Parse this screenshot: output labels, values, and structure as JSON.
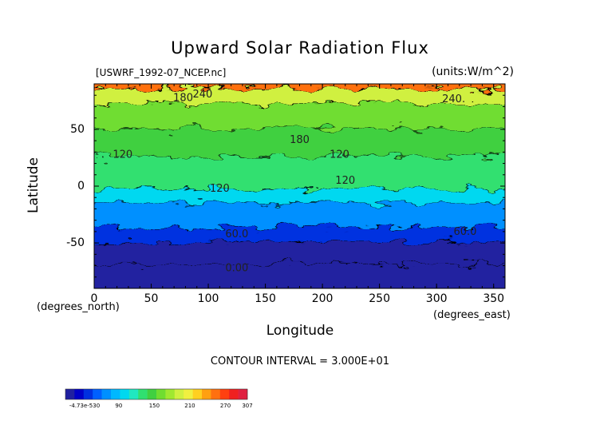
{
  "chart_data": {
    "type": "heatmap",
    "title": "Upward Solar Radiation Flux",
    "file_label": "[USWRF_1992-07_NCEP.nc]",
    "units_label": "(units:W/m^2)",
    "xlabel": "Longitude",
    "ylabel": "Latitude",
    "x_axis_note": "(degrees_east)",
    "y_axis_note": "(degrees_north)",
    "xlim": [
      0,
      360
    ],
    "ylim": [
      -90,
      90
    ],
    "x_ticks": [
      "0",
      "50",
      "100",
      "150",
      "200",
      "250",
      "300",
      "350"
    ],
    "y_ticks": [
      "50",
      "0",
      "-50"
    ],
    "contour_interval_text": "CONTOUR INTERVAL = 3.000E+01",
    "contour_labels": [
      {
        "text": "240",
        "lon": 95,
        "lat": 78
      },
      {
        "text": "180",
        "lon": 78,
        "lat": 75
      },
      {
        "text": "240.",
        "lon": 315,
        "lat": 74
      },
      {
        "text": "180",
        "lon": 180,
        "lat": 38
      },
      {
        "text": "120",
        "lon": 215,
        "lat": 25
      },
      {
        "text": "120",
        "lon": 25,
        "lat": 25
      },
      {
        "text": "120",
        "lon": 110,
        "lat": -5
      },
      {
        "text": "120",
        "lon": 220,
        "lat": 2
      },
      {
        "text": "60.0",
        "lon": 125,
        "lat": -45
      },
      {
        "text": "60.0",
        "lon": 325,
        "lat": -43
      },
      {
        "text": "0.00",
        "lon": 125,
        "lat": -75
      }
    ],
    "latitude_bands": [
      {
        "lat_from": 90,
        "lat_to": 80,
        "value": 255
      },
      {
        "lat_from": 80,
        "lat_to": 68,
        "value": 195
      },
      {
        "lat_from": 68,
        "lat_to": 45,
        "value": 165
      },
      {
        "lat_from": 45,
        "lat_to": 20,
        "value": 150
      },
      {
        "lat_from": 20,
        "lat_to": -8,
        "value": 135
      },
      {
        "lat_from": -8,
        "lat_to": -20,
        "value": 105
      },
      {
        "lat_from": -20,
        "lat_to": -42,
        "value": 75
      },
      {
        "lat_from": -42,
        "lat_to": -55,
        "value": 45
      },
      {
        "lat_from": -55,
        "lat_to": -74,
        "value": 15
      },
      {
        "lat_from": -74,
        "lat_to": -90,
        "value": 0
      }
    ],
    "colorbar": {
      "min_label": "-4.73e-530",
      "tick_labels": [
        "90",
        "150",
        "210",
        "270",
        "307"
      ],
      "colors": [
        "#2020a0",
        "#0000c8",
        "#0030e0",
        "#0060ff",
        "#0090ff",
        "#00b8ff",
        "#00d8f0",
        "#20e8c0",
        "#30e070",
        "#40d040",
        "#70dd30",
        "#a0e830",
        "#d0f040",
        "#f0f040",
        "#ffd020",
        "#ffa010",
        "#ff7010",
        "#ff4010",
        "#f02020",
        "#e02040"
      ]
    }
  }
}
